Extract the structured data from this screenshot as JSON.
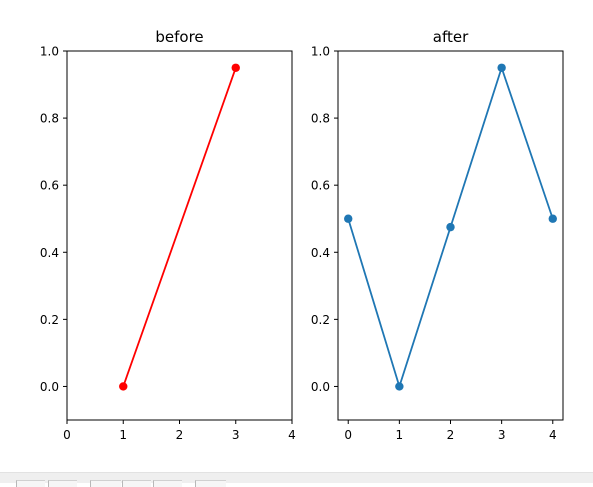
{
  "chart_data": [
    {
      "type": "line",
      "title": "before",
      "xlim": [
        0,
        4
      ],
      "ylim": [
        -0.1,
        1.0
      ],
      "xticks": [
        0,
        1,
        2,
        3,
        4
      ],
      "yticks": [
        0.0,
        0.2,
        0.4,
        0.6,
        0.8,
        1.0
      ],
      "xticklabels": [
        "0",
        "1",
        "2",
        "3",
        "4"
      ],
      "yticklabels": [
        "0.0",
        "0.2",
        "0.4",
        "0.6",
        "0.8",
        "1.0"
      ],
      "series": [
        {
          "color": "#ff0000",
          "marker": "circle",
          "x": [
            1,
            3
          ],
          "y": [
            0.0,
            0.95
          ]
        }
      ],
      "grid": false
    },
    {
      "type": "line",
      "title": "after",
      "xlim": [
        -0.2,
        4.2
      ],
      "ylim": [
        -0.1,
        1.0
      ],
      "xticks": [
        0,
        1,
        2,
        3,
        4
      ],
      "yticks": [
        0.0,
        0.2,
        0.4,
        0.6,
        0.8,
        1.0
      ],
      "xticklabels": [
        "0",
        "1",
        "2",
        "3",
        "4"
      ],
      "yticklabels": [
        "0.0",
        "0.2",
        "0.4",
        "0.6",
        "0.8",
        "1.0"
      ],
      "series": [
        {
          "color": "#1f77b4",
          "marker": "circle",
          "x": [
            0,
            1,
            2,
            3,
            4
          ],
          "y": [
            0.5,
            0.0,
            0.475,
            0.95,
            0.5
          ]
        }
      ],
      "grid": false
    }
  ]
}
